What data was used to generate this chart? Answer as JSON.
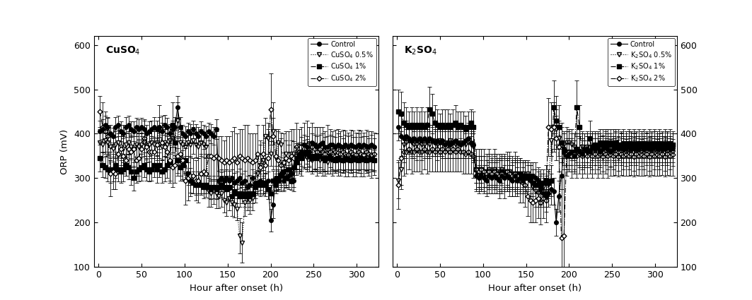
{
  "title_left": "CuSO$_4$",
  "title_right": "K$_2$SO$_4$",
  "ylabel": "ORP (mV)",
  "xlabel": "Hour after onset (h)",
  "ylim": [
    100,
    620
  ],
  "yticks": [
    100,
    200,
    300,
    400,
    500,
    600
  ],
  "xlim": [
    -5,
    325
  ],
  "xticks": [
    0,
    50,
    100,
    150,
    200,
    250,
    300
  ],
  "cu_legend": [
    "Control",
    "CuSO$_4$ 0.5%",
    "CuSO$_4$ 1%",
    "CuSO$_4$ 2%"
  ],
  "k_legend": [
    "Control",
    "K$_2$SO$_4$ 0.5%",
    "K$_2$SO$_4$ 1%",
    "K$_2$SO$_4$ 2%"
  ],
  "cu_x": [
    2,
    5,
    8,
    11,
    14,
    17,
    20,
    23,
    26,
    29,
    32,
    35,
    38,
    41,
    44,
    47,
    50,
    53,
    56,
    59,
    62,
    65,
    68,
    71,
    74,
    77,
    80,
    83,
    86,
    89,
    92,
    95,
    98,
    101,
    104,
    107,
    110,
    113,
    116,
    119,
    122,
    125,
    128,
    131,
    134,
    137,
    140,
    143,
    146,
    149,
    152,
    155,
    158,
    161,
    164,
    167,
    170,
    173,
    176,
    179,
    182,
    185,
    188,
    191,
    194,
    197,
    200,
    203,
    206,
    209,
    212,
    215,
    218,
    221,
    224,
    227,
    230,
    233,
    236,
    239,
    242,
    245,
    248,
    251,
    254,
    257,
    260,
    263,
    266,
    269,
    272,
    275,
    278,
    281,
    284,
    287,
    290,
    293,
    296,
    299,
    302,
    305,
    308,
    311,
    314,
    317,
    320
  ],
  "cu_control_y": [
    405,
    410,
    420,
    415,
    400,
    395,
    415,
    420,
    405,
    400,
    415,
    420,
    410,
    405,
    415,
    410,
    415,
    410,
    400,
    405,
    410,
    415,
    410,
    415,
    405,
    420,
    415,
    400,
    410,
    415,
    460,
    415,
    400,
    395,
    405,
    400,
    410,
    400,
    395,
    405,
    400,
    395,
    405,
    400,
    395,
    410,
    295,
    300,
    295,
    300,
    295,
    300,
    290,
    295,
    300,
    290,
    295,
    280,
    285,
    300,
    290,
    285,
    295,
    285,
    290,
    295,
    205,
    240,
    300,
    295,
    310,
    295,
    300,
    305,
    310,
    295,
    345,
    355,
    360,
    375,
    370,
    360,
    380,
    375,
    370,
    375,
    380,
    370,
    370,
    375,
    375,
    370,
    375,
    372,
    370,
    375,
    370,
    375,
    372,
    370,
    375,
    370,
    375,
    372,
    370,
    375,
    370
  ],
  "cu_control_err": [
    25,
    22,
    20,
    22,
    20,
    18,
    22,
    20,
    22,
    20,
    22,
    20,
    18,
    22,
    20,
    22,
    20,
    22,
    20,
    22,
    20,
    22,
    20,
    22,
    20,
    22,
    20,
    22,
    20,
    22,
    25,
    22,
    20,
    22,
    20,
    22,
    20,
    22,
    20,
    22,
    20,
    22,
    20,
    22,
    20,
    22,
    22,
    20,
    22,
    20,
    22,
    20,
    22,
    20,
    22,
    20,
    22,
    25,
    22,
    20,
    22,
    20,
    22,
    20,
    22,
    20,
    25,
    30,
    28,
    25,
    25,
    22,
    20,
    25,
    22,
    25,
    25,
    22,
    20,
    22,
    25,
    22,
    20,
    22,
    25,
    22,
    20,
    22,
    25,
    22,
    20,
    22,
    25,
    22,
    20,
    22,
    25,
    22,
    20,
    22,
    25,
    22,
    20,
    22,
    20,
    22,
    20
  ],
  "cu_05_y": [
    380,
    375,
    385,
    380,
    370,
    365,
    375,
    380,
    370,
    365,
    375,
    380,
    370,
    365,
    375,
    370,
    375,
    380,
    370,
    375,
    380,
    375,
    380,
    375,
    370,
    380,
    375,
    385,
    390,
    380,
    430,
    380,
    375,
    370,
    380,
    375,
    385,
    375,
    370,
    380,
    375,
    370,
    270,
    265,
    270,
    265,
    260,
    265,
    250,
    245,
    255,
    245,
    240,
    230,
    170,
    155,
    245,
    255,
    250,
    255,
    280,
    310,
    330,
    340,
    395,
    390,
    355,
    405,
    345,
    380,
    375,
    330,
    355,
    340,
    355,
    355,
    350,
    345,
    360,
    350,
    345,
    355,
    340,
    350,
    345,
    340,
    350,
    345,
    335,
    345,
    342,
    340,
    345,
    340,
    338,
    345,
    340,
    345,
    342,
    340,
    345,
    340,
    345,
    342,
    340,
    345,
    340
  ],
  "cu_05_err": [
    30,
    28,
    30,
    28,
    25,
    28,
    30,
    28,
    25,
    30,
    28,
    25,
    28,
    30,
    28,
    30,
    28,
    30,
    28,
    25,
    28,
    30,
    28,
    30,
    28,
    30,
    28,
    30,
    32,
    28,
    40,
    30,
    28,
    25,
    30,
    28,
    30,
    28,
    25,
    30,
    28,
    25,
    35,
    30,
    28,
    32,
    28,
    30,
    28,
    30,
    28,
    30,
    28,
    25,
    40,
    45,
    30,
    28,
    30,
    28,
    35,
    40,
    45,
    40,
    40,
    35,
    28,
    30,
    35,
    30,
    28,
    28,
    30,
    35,
    30,
    28,
    28,
    30,
    32,
    28,
    30,
    28,
    30,
    28,
    25,
    28,
    30,
    28,
    25,
    28,
    26,
    25,
    28,
    26,
    25,
    28,
    26,
    25,
    28,
    26,
    25,
    28,
    26,
    25,
    26,
    28,
    25
  ],
  "cu_1_y": [
    345,
    330,
    325,
    320,
    315,
    320,
    330,
    320,
    315,
    320,
    330,
    325,
    315,
    300,
    315,
    320,
    325,
    330,
    320,
    315,
    320,
    330,
    320,
    330,
    315,
    320,
    330,
    335,
    420,
    380,
    340,
    325,
    330,
    340,
    310,
    295,
    290,
    285,
    290,
    285,
    280,
    285,
    280,
    275,
    280,
    275,
    280,
    285,
    280,
    275,
    280,
    260,
    270,
    265,
    260,
    265,
    260,
    265,
    260,
    265,
    280,
    290,
    285,
    290,
    285,
    275,
    265,
    295,
    285,
    295,
    305,
    315,
    300,
    320,
    295,
    325,
    335,
    350,
    345,
    355,
    360,
    350,
    345,
    350,
    345,
    350,
    345,
    340,
    345,
    350,
    342,
    340,
    345,
    342,
    340,
    345,
    342,
    340,
    345,
    342,
    340,
    345,
    342,
    340,
    342,
    345,
    340
  ],
  "cu_1_err": [
    30,
    28,
    25,
    28,
    25,
    28,
    30,
    28,
    25,
    28,
    25,
    28,
    30,
    28,
    25,
    28,
    30,
    28,
    25,
    22,
    25,
    28,
    30,
    28,
    25,
    28,
    30,
    40,
    50,
    35,
    28,
    30,
    32,
    28,
    25,
    28,
    25,
    22,
    25,
    22,
    25,
    28,
    25,
    22,
    25,
    22,
    25,
    28,
    25,
    22,
    25,
    22,
    25,
    22,
    25,
    22,
    25,
    22,
    25,
    22,
    25,
    28,
    25,
    28,
    25,
    22,
    20,
    22,
    20,
    22,
    25,
    25,
    22,
    25,
    22,
    25,
    28,
    30,
    28,
    30,
    28,
    25,
    28,
    30,
    28,
    25,
    28,
    25,
    28,
    25,
    23,
    22,
    25,
    23,
    22,
    25,
    23,
    22,
    25,
    23,
    22,
    25,
    23,
    22,
    23,
    25,
    22
  ],
  "cu_2_y": [
    450,
    415,
    405,
    395,
    310,
    315,
    310,
    355,
    365,
    350,
    340,
    365,
    360,
    365,
    340,
    345,
    365,
    390,
    370,
    360,
    360,
    360,
    375,
    415,
    380,
    370,
    360,
    340,
    325,
    330,
    350,
    355,
    340,
    295,
    300,
    305,
    305,
    295,
    295,
    310,
    315,
    310,
    350,
    350,
    345,
    350,
    345,
    340,
    335,
    340,
    335,
    340,
    345,
    335,
    350,
    345,
    340,
    345,
    340,
    335,
    340,
    355,
    325,
    355,
    330,
    345,
    455,
    395,
    350,
    340,
    330,
    335,
    345,
    340,
    350,
    345,
    370,
    360,
    360,
    375,
    375,
    365,
    370,
    365,
    360,
    365,
    360,
    355,
    365,
    360,
    355,
    360,
    358,
    355,
    360,
    355,
    353,
    360,
    355,
    353,
    360,
    355,
    353,
    360,
    355,
    353,
    355
  ],
  "cu_2_err": [
    35,
    55,
    45,
    40,
    50,
    40,
    35,
    40,
    35,
    40,
    35,
    40,
    35,
    40,
    35,
    40,
    35,
    40,
    35,
    40,
    35,
    30,
    35,
    50,
    60,
    45,
    40,
    50,
    45,
    40,
    45,
    50,
    45,
    55,
    50,
    45,
    40,
    45,
    50,
    45,
    50,
    45,
    50,
    55,
    50,
    55,
    50,
    55,
    50,
    55,
    60,
    65,
    70,
    65,
    60,
    65,
    80,
    75,
    60,
    65,
    60,
    65,
    60,
    65,
    60,
    65,
    80,
    75,
    60,
    65,
    60,
    65,
    60,
    65,
    60,
    65,
    55,
    50,
    55,
    50,
    55,
    50,
    55,
    50,
    55,
    50,
    55,
    50,
    55,
    50,
    50,
    48,
    52,
    50,
    48,
    52,
    50,
    48,
    52,
    50,
    48,
    52,
    50,
    48,
    50,
    52,
    48
  ],
  "k_x": [
    2,
    5,
    8,
    11,
    14,
    17,
    20,
    23,
    26,
    29,
    32,
    35,
    38,
    41,
    44,
    47,
    50,
    53,
    56,
    59,
    62,
    65,
    68,
    71,
    74,
    77,
    80,
    83,
    86,
    89,
    92,
    95,
    98,
    101,
    104,
    107,
    110,
    113,
    116,
    119,
    122,
    125,
    128,
    131,
    134,
    137,
    140,
    143,
    146,
    149,
    152,
    155,
    158,
    161,
    164,
    167,
    170,
    173,
    176,
    179,
    182,
    185,
    188,
    191,
    194,
    197,
    200,
    203,
    206,
    209,
    212,
    215,
    218,
    221,
    224,
    227,
    230,
    233,
    236,
    239,
    242,
    245,
    248,
    251,
    254,
    257,
    260,
    263,
    266,
    269,
    272,
    275,
    278,
    281,
    284,
    287,
    290,
    293,
    296,
    299,
    302,
    305,
    308,
    311,
    314,
    317,
    320
  ],
  "k_control_y": [
    415,
    395,
    390,
    395,
    390,
    385,
    390,
    385,
    390,
    385,
    390,
    385,
    390,
    385,
    380,
    385,
    380,
    385,
    375,
    380,
    375,
    380,
    385,
    380,
    375,
    380,
    385,
    390,
    380,
    375,
    305,
    300,
    305,
    300,
    295,
    305,
    300,
    305,
    300,
    295,
    305,
    300,
    305,
    300,
    295,
    305,
    295,
    300,
    295,
    305,
    300,
    295,
    305,
    300,
    295,
    275,
    265,
    260,
    265,
    275,
    270,
    200,
    260,
    305,
    365,
    350,
    355,
    360,
    350,
    365,
    360,
    355,
    365,
    365,
    360,
    370,
    365,
    370,
    360,
    365,
    370,
    365,
    360,
    365,
    370,
    365,
    368,
    365,
    365,
    370,
    365,
    368,
    365,
    365,
    370,
    365,
    368,
    365,
    365,
    370,
    365,
    368,
    365,
    365,
    370,
    365,
    368
  ],
  "k_control_err": [
    30,
    45,
    40,
    35,
    30,
    35,
    30,
    35,
    30,
    35,
    30,
    35,
    30,
    35,
    30,
    35,
    30,
    35,
    30,
    35,
    30,
    35,
    40,
    35,
    30,
    35,
    30,
    35,
    30,
    35,
    35,
    30,
    35,
    30,
    35,
    30,
    35,
    30,
    35,
    30,
    35,
    30,
    35,
    30,
    35,
    30,
    30,
    35,
    30,
    35,
    30,
    35,
    30,
    35,
    30,
    35,
    30,
    35,
    30,
    35,
    30,
    30,
    35,
    30,
    35,
    30,
    35,
    30,
    35,
    30,
    35,
    30,
    35,
    30,
    35,
    30,
    35,
    30,
    35,
    30,
    35,
    30,
    35,
    30,
    35,
    30,
    32,
    30,
    30,
    35,
    30,
    32,
    30,
    30,
    35,
    30,
    32,
    30,
    30,
    35,
    30,
    32,
    30,
    30,
    35,
    30,
    32
  ],
  "k_05_y": [
    295,
    320,
    375,
    380,
    385,
    380,
    375,
    375,
    380,
    375,
    375,
    380,
    375,
    385,
    380,
    375,
    385,
    380,
    375,
    380,
    385,
    380,
    375,
    380,
    375,
    380,
    375,
    380,
    375,
    370,
    320,
    315,
    320,
    315,
    310,
    320,
    315,
    320,
    315,
    310,
    320,
    315,
    310,
    315,
    310,
    305,
    310,
    305,
    310,
    305,
    310,
    295,
    280,
    270,
    265,
    270,
    280,
    270,
    285,
    385,
    415,
    410,
    390,
    380,
    375,
    380,
    380,
    375,
    370,
    365,
    360,
    370,
    355,
    370,
    360,
    355,
    360,
    355,
    360,
    350,
    360,
    355,
    358,
    355,
    360,
    352,
    360,
    355,
    358,
    355,
    360,
    352,
    360,
    355,
    358,
    355,
    360,
    352,
    360,
    355,
    358,
    355,
    360,
    352,
    360,
    355,
    358
  ],
  "k_05_err": [
    40,
    45,
    40,
    35,
    30,
    35,
    30,
    35,
    30,
    35,
    30,
    35,
    30,
    35,
    30,
    35,
    30,
    35,
    30,
    35,
    30,
    35,
    30,
    35,
    30,
    35,
    30,
    35,
    30,
    35,
    30,
    35,
    30,
    35,
    30,
    35,
    30,
    35,
    30,
    35,
    30,
    35,
    30,
    35,
    30,
    35,
    30,
    35,
    30,
    35,
    30,
    35,
    30,
    35,
    30,
    35,
    30,
    35,
    30,
    35,
    50,
    45,
    40,
    35,
    30,
    35,
    30,
    35,
    30,
    35,
    30,
    35,
    30,
    35,
    30,
    35,
    30,
    35,
    30,
    35,
    30,
    35,
    30,
    35,
    30,
    35,
    30,
    35,
    30,
    35,
    30,
    35,
    30,
    35,
    30,
    35,
    30,
    35,
    30,
    35,
    30,
    35,
    30,
    35,
    30,
    35,
    30
  ],
  "k_1_y": [
    450,
    445,
    425,
    420,
    415,
    420,
    415,
    420,
    415,
    420,
    415,
    420,
    455,
    445,
    425,
    420,
    415,
    420,
    415,
    420,
    415,
    420,
    425,
    415,
    420,
    415,
    410,
    415,
    425,
    415,
    320,
    315,
    320,
    315,
    310,
    315,
    310,
    315,
    310,
    305,
    315,
    310,
    315,
    310,
    305,
    310,
    305,
    310,
    305,
    300,
    305,
    300,
    290,
    285,
    285,
    285,
    290,
    295,
    290,
    295,
    460,
    430,
    415,
    380,
    360,
    355,
    360,
    350,
    360,
    460,
    415,
    355,
    355,
    360,
    390,
    370,
    375,
    370,
    380,
    375,
    380,
    375,
    380,
    375,
    380,
    375,
    375,
    378,
    375,
    378,
    375,
    378,
    375,
    378,
    375,
    378,
    375,
    378,
    375,
    378,
    375,
    378,
    375,
    378,
    375,
    378,
    375
  ],
  "k_1_err": [
    50,
    50,
    45,
    40,
    35,
    40,
    35,
    40,
    35,
    40,
    35,
    40,
    50,
    45,
    40,
    35,
    30,
    35,
    40,
    35,
    30,
    35,
    40,
    35,
    30,
    35,
    30,
    35,
    30,
    35,
    30,
    35,
    30,
    35,
    30,
    35,
    30,
    35,
    30,
    35,
    30,
    35,
    30,
    35,
    30,
    35,
    30,
    35,
    30,
    35,
    30,
    35,
    30,
    35,
    30,
    35,
    30,
    35,
    30,
    35,
    60,
    55,
    50,
    45,
    40,
    35,
    30,
    35,
    40,
    60,
    50,
    35,
    30,
    35,
    40,
    35,
    30,
    35,
    30,
    35,
    30,
    35,
    30,
    35,
    30,
    35,
    30,
    32,
    30,
    32,
    30,
    32,
    30,
    32,
    30,
    32,
    30,
    32,
    30,
    32,
    30,
    32,
    30,
    32,
    30,
    32,
    30
  ],
  "k_2_y": [
    285,
    345,
    360,
    360,
    365,
    360,
    360,
    365,
    360,
    360,
    365,
    360,
    360,
    365,
    360,
    365,
    360,
    365,
    360,
    365,
    360,
    365,
    360,
    365,
    360,
    360,
    355,
    360,
    355,
    350,
    320,
    315,
    320,
    315,
    310,
    315,
    310,
    315,
    310,
    305,
    310,
    305,
    315,
    310,
    305,
    310,
    305,
    295,
    290,
    285,
    260,
    250,
    245,
    250,
    255,
    245,
    255,
    250,
    415,
    410,
    415,
    390,
    370,
    165,
    170,
    355,
    360,
    350,
    355,
    350,
    355,
    350,
    355,
    350,
    355,
    350,
    355,
    350,
    355,
    348,
    355,
    350,
    353,
    350,
    355,
    348,
    355,
    350,
    353,
    350,
    355,
    348,
    355,
    350,
    353,
    350,
    355,
    348,
    355,
    350,
    353,
    350,
    355,
    348,
    355,
    350,
    353
  ],
  "k_2_err": [
    55,
    60,
    55,
    50,
    45,
    50,
    45,
    50,
    45,
    50,
    45,
    50,
    45,
    50,
    45,
    50,
    45,
    50,
    45,
    50,
    45,
    50,
    45,
    50,
    45,
    50,
    45,
    50,
    45,
    50,
    45,
    50,
    45,
    50,
    45,
    50,
    45,
    50,
    45,
    50,
    45,
    50,
    45,
    50,
    45,
    50,
    45,
    50,
    45,
    50,
    45,
    50,
    45,
    50,
    45,
    50,
    45,
    50,
    65,
    60,
    55,
    50,
    55,
    200,
    200,
    50,
    45,
    50,
    45,
    50,
    45,
    50,
    45,
    50,
    45,
    50,
    45,
    50,
    45,
    48,
    45,
    50,
    47,
    45,
    48,
    45,
    48,
    45,
    47,
    45,
    48,
    45,
    48,
    45,
    47,
    45,
    48,
    45,
    48,
    45,
    47,
    45,
    48,
    45,
    48,
    45,
    47
  ]
}
